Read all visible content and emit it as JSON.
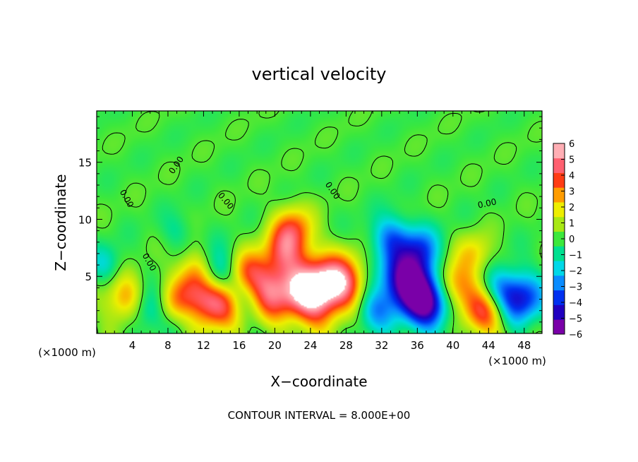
{
  "chart_data": {
    "type": "heatmap",
    "title": "vertical velocity",
    "xlabel": "X−coordinate",
    "ylabel": "Z−coordinate",
    "x_unit_left": "(×1000 m)",
    "x_unit_right": "(×1000 m)",
    "footer": "CONTOUR INTERVAL = 8.000E+00",
    "xlim": [
      0,
      50
    ],
    "ylim": [
      0,
      19.5
    ],
    "x_ticks": [
      4,
      8,
      12,
      16,
      20,
      24,
      28,
      32,
      36,
      40,
      44,
      48
    ],
    "x_tick_labels": [
      "4",
      "8",
      "12",
      "16",
      "20",
      "24",
      "28",
      "32",
      "36",
      "40",
      "44",
      "48"
    ],
    "y_ticks": [
      5,
      10,
      15
    ],
    "y_tick_labels": [
      "5",
      "10",
      "15"
    ],
    "colorbar": {
      "min": -6,
      "max": 6,
      "tick_values": [
        6,
        5,
        4,
        3,
        2,
        1,
        0,
        -1,
        -2,
        -3,
        -4,
        -5,
        -6
      ],
      "tick_labels": [
        "6",
        "5",
        "4",
        "3",
        "2",
        "1",
        "0",
        "−1",
        "−2",
        "−3",
        "−4",
        "−5",
        "−6"
      ],
      "colors": [
        "#7a00a8",
        "#2000c0",
        "#0030f0",
        "#0a8cff",
        "#00d8e8",
        "#00e090",
        "#3ce83c",
        "#a8e814",
        "#eeee00",
        "#ff9c00",
        "#ff3c14",
        "#ff6070",
        "#ffaeb4"
      ]
    },
    "contour_labels": [
      "0.00",
      "0.00",
      "0.00",
      "0.00",
      "0.00",
      "0.00"
    ],
    "features": [
      {
        "x": 3.5,
        "z": 2.9,
        "w": 0.95
      },
      {
        "x": 8.5,
        "z": 2.4,
        "w": 0.6
      },
      {
        "x": 11.5,
        "z": 2.8,
        "w": 1.4
      },
      {
        "x": 11.2,
        "z": 5.6,
        "w": 0.6
      },
      {
        "x": 14.5,
        "z": 2.6,
        "w": 0.8
      },
      {
        "x": 18.5,
        "z": 3.6,
        "w": 1.5
      },
      {
        "x": 16.5,
        "z": 5.5,
        "w": 0.6
      },
      {
        "x": 13.5,
        "z": 5.2,
        "w": -0.9
      },
      {
        "x": 10.0,
        "z": 2.0,
        "w": -0.7
      },
      {
        "x": 5.5,
        "z": 2.2,
        "w": -0.8
      },
      {
        "x": 17.0,
        "z": 3.0,
        "w": -1.0
      },
      {
        "x": 22.0,
        "z": 9.0,
        "w": 0.9
      },
      {
        "x": 24.0,
        "z": 3.6,
        "w": 1.7
      },
      {
        "x": 27.5,
        "z": 4.5,
        "w": 1.2
      },
      {
        "x": 21.0,
        "z": 7.0,
        "w": 0.7
      },
      {
        "x": 35.0,
        "z": 4.6,
        "w": -1.6
      },
      {
        "x": 33.0,
        "z": 8.5,
        "w": -0.7
      },
      {
        "x": 36.5,
        "z": 7.5,
        "w": -0.6
      },
      {
        "x": 37.5,
        "z": 2.6,
        "w": -1.2
      },
      {
        "x": 31.0,
        "z": 2.0,
        "w": -0.6
      },
      {
        "x": 40.0,
        "z": 4.2,
        "w": 1.0
      },
      {
        "x": 43.5,
        "z": 1.8,
        "w": 1.0
      },
      {
        "x": 42.5,
        "z": 7.0,
        "w": 0.5
      },
      {
        "x": 47.5,
        "z": 3.0,
        "w": -1.1
      },
      {
        "x": 45.0,
        "z": 4.0,
        "w": -0.5
      },
      {
        "x": 1.0,
        "z": 6.0,
        "w": -0.4
      },
      {
        "x": 9.0,
        "z": 9.0,
        "w": -0.25
      }
    ]
  }
}
